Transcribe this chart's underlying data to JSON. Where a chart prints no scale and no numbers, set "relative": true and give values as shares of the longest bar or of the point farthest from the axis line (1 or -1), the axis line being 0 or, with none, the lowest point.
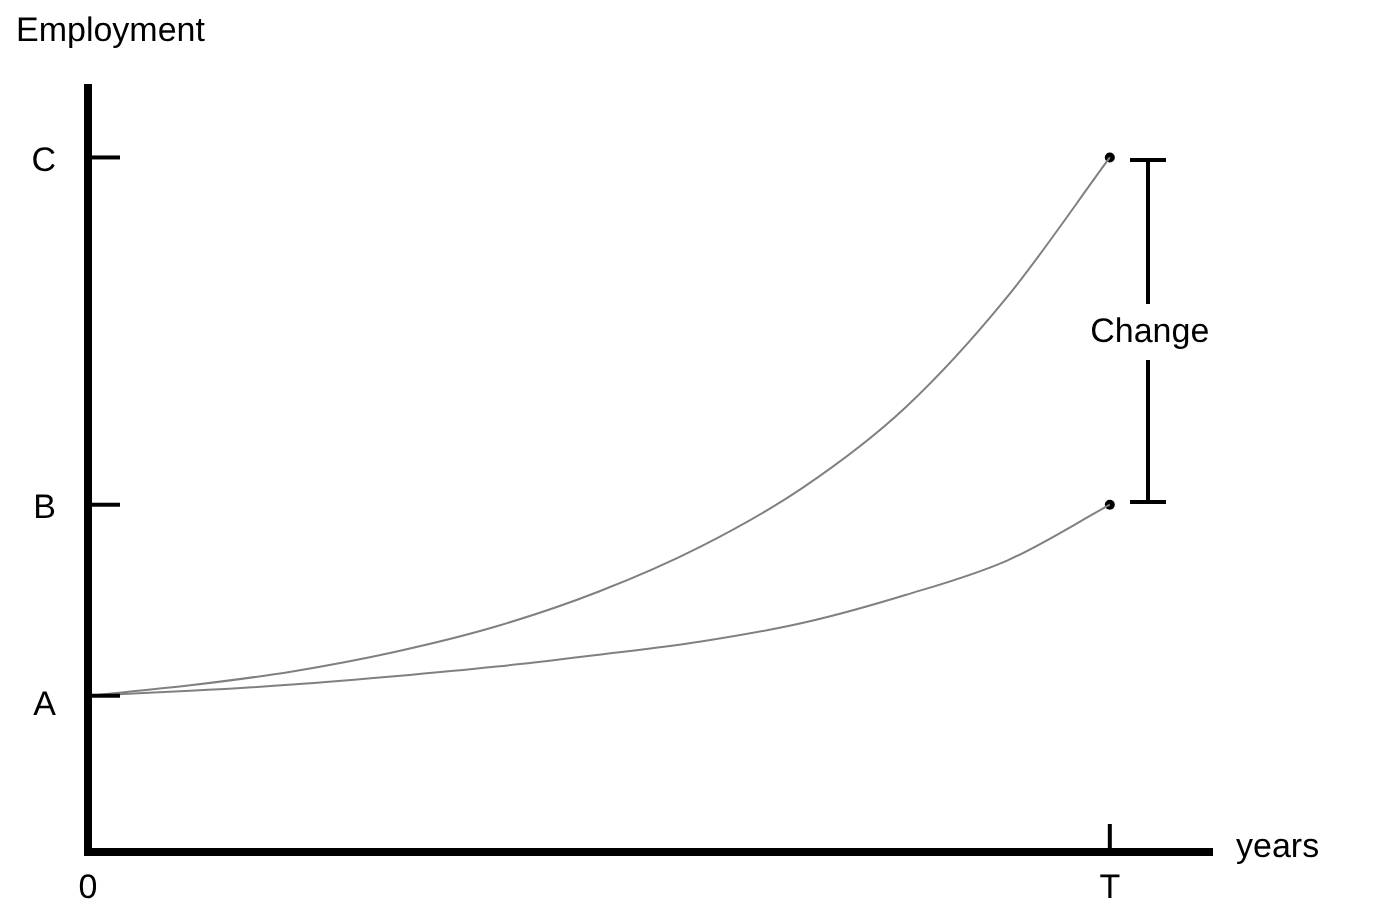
{
  "chart_data": {
    "type": "line",
    "relative": true,
    "xlabel": "years",
    "ylabel": "Employment",
    "categories": [
      "0",
      null,
      null,
      null,
      null,
      null,
      null,
      null,
      null,
      null,
      "T",
      null
    ],
    "grid": false,
    "legend": false,
    "marker": "none",
    "annotations": [
      "Change",
      "A",
      "B",
      "C"
    ],
    "series": [
      {
        "color": "#808080",
        "values": [
          0.225,
          0.24,
          0.26,
          0.288,
          0.325,
          0.375,
          0.44,
          0.525,
          0.64,
          0.8,
          1,
          null
        ]
      },
      {
        "color": "#808080",
        "values": [
          0.225,
          0.232,
          0.241,
          0.253,
          0.267,
          0.284,
          0.303,
          0.33,
          0.37,
          0.42,
          0.5,
          null
        ]
      },
      {
        "type": "scatter",
        "color": "#000000",
        "marker": "circle",
        "x": [
          "T",
          "T"
        ],
        "values": [
          1,
          0.5
        ]
      }
    ]
  }
}
